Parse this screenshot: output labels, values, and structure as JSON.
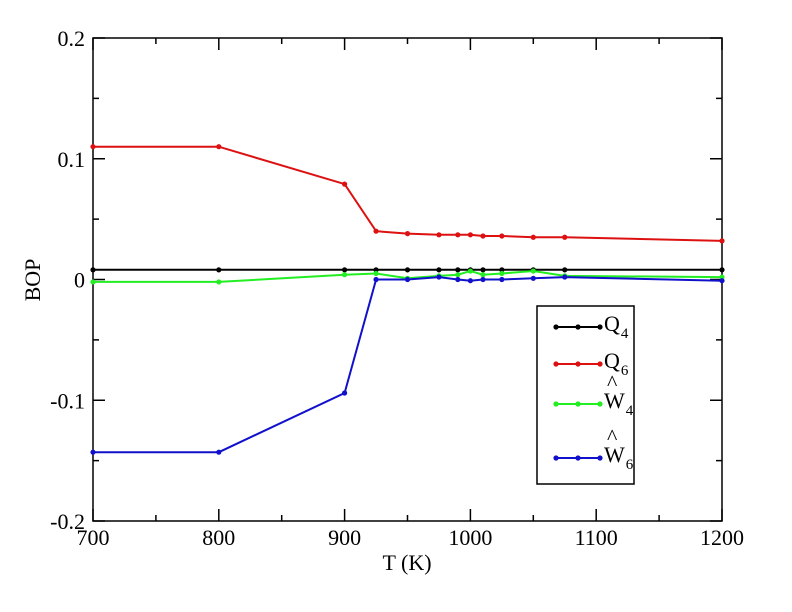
{
  "chart_data": {
    "type": "line",
    "xlabel": "T (K)",
    "ylabel": "BOP",
    "xlim": [
      700,
      1200
    ],
    "ylim": [
      -0.2,
      0.2
    ],
    "xticks": [
      700,
      800,
      900,
      1000,
      1100,
      1200
    ],
    "xtick_labels": [
      "700",
      "800",
      "900",
      "1000",
      "1100",
      "1200"
    ],
    "yticks": [
      -0.2,
      -0.1,
      0,
      0.1,
      0.2
    ],
    "ytick_labels": [
      "-0.2",
      "-0.1",
      "0",
      "0.1",
      "0.2"
    ],
    "grid": false,
    "legend_position": "lower-right",
    "x": [
      700,
      800,
      900,
      925,
      950,
      975,
      990,
      1000,
      1010,
      1025,
      1050,
      1075,
      1200
    ],
    "series": [
      {
        "name": "Q",
        "subscript": "4",
        "hat": false,
        "color": "#000000",
        "values": [
          0.008,
          0.008,
          0.008,
          0.008,
          0.008,
          0.008,
          0.008,
          0.008,
          0.008,
          0.008,
          0.008,
          0.008,
          0.008
        ]
      },
      {
        "name": "Q",
        "subscript": "6",
        "hat": false,
        "color": "#dd1111",
        "values": [
          0.11,
          0.11,
          0.079,
          0.04,
          0.038,
          0.037,
          0.037,
          0.037,
          0.036,
          0.036,
          0.035,
          0.035,
          0.032
        ]
      },
      {
        "name": "W",
        "subscript": "4",
        "hat": true,
        "color": "#22ee22",
        "values": [
          -0.002,
          -0.002,
          0.004,
          0.005,
          0.001,
          0.003,
          0.004,
          0.007,
          0.004,
          0.005,
          0.007,
          0.003,
          0.002
        ]
      },
      {
        "name": "W",
        "subscript": "6",
        "hat": true,
        "color": "#1111cc",
        "values": [
          -0.143,
          -0.143,
          -0.094,
          0.0,
          0.0,
          0.002,
          0.0,
          -0.001,
          0.0,
          0.0,
          0.001,
          0.002,
          -0.001
        ]
      }
    ]
  }
}
